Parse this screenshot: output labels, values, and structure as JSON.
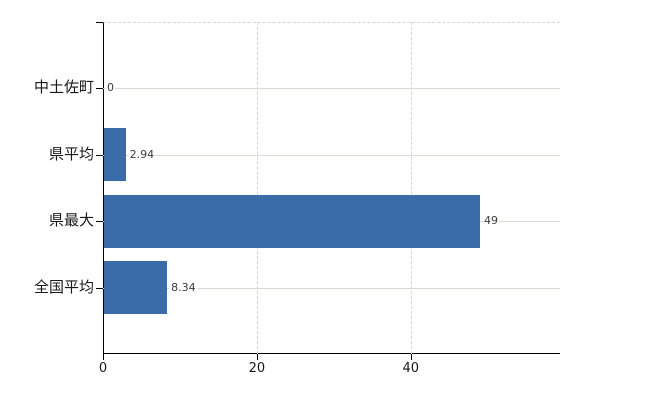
{
  "chart_data": {
    "type": "bar",
    "orientation": "horizontal",
    "title": "",
    "xlabel": "",
    "ylabel": "",
    "categories": [
      "中土佐町",
      "県平均",
      "県最大",
      "全国平均"
    ],
    "values": [
      0,
      2.94,
      49,
      8.34
    ],
    "value_labels": [
      "0",
      "2.94",
      "49",
      "8.34"
    ],
    "x_ticks": [
      0,
      20,
      40
    ],
    "x_tick_labels": [
      "0",
      "20",
      "40"
    ],
    "xlim": [
      0,
      59.4
    ],
    "legend": "none",
    "grid": {
      "horizontal": "solid line at each category center",
      "vertical": "dashed line at x ticks 20 and 40",
      "plot_top_border": "dashed"
    },
    "colors": {
      "bar": "#3b6caa",
      "axis": "#000000",
      "horizontal_grid": "#d7dcd2",
      "vertical_grid": "#d6d2d8",
      "text": "#1a1a1a",
      "value_text": "#3c3c3c",
      "background": "#ffffff"
    }
  }
}
